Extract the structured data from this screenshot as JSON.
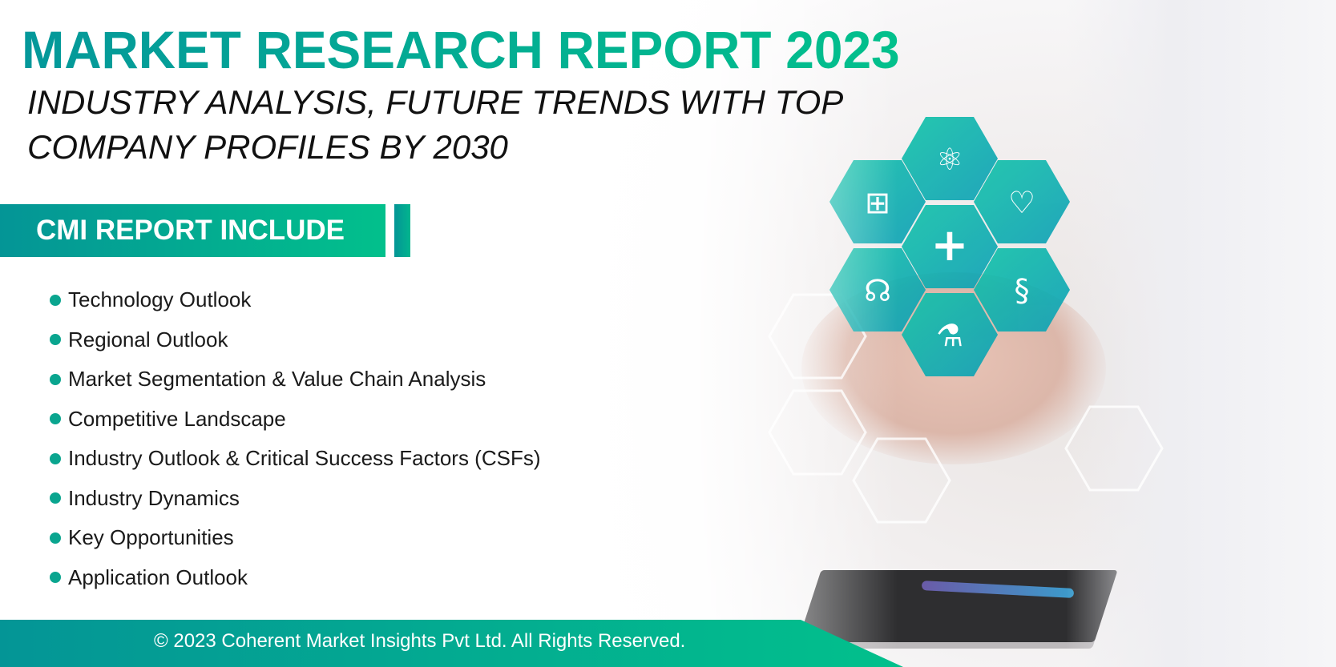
{
  "header": {
    "title": "MARKET RESEARCH REPORT 2023",
    "subtitle_line1": "INDUSTRY ANALYSIS, FUTURE TRENDS WITH TOP",
    "subtitle_line2": "COMPANY PROFILES BY 2030"
  },
  "section": {
    "label": "CMI REPORT INCLUDE"
  },
  "items": [
    "Technology Outlook",
    "Regional Outlook",
    "Market Segmentation & Value Chain Analysis",
    "Competitive Landscape",
    "Industry Outlook & Critical Success Factors (CSFs)",
    "Industry Dynamics",
    "Key Opportunities",
    "Application Outlook"
  ],
  "footer": {
    "copyright": "© 2023 Coherent Market Insights Pvt Ltd. All Rights Reserved."
  },
  "colors": {
    "accent_start": "#049596",
    "accent_end": "#02c08c"
  },
  "icons": [
    "medical-kit-icon",
    "atom-icon",
    "heart-rate-icon",
    "plus-icon",
    "stethoscope-icon",
    "dna-icon",
    "flask-icon"
  ]
}
